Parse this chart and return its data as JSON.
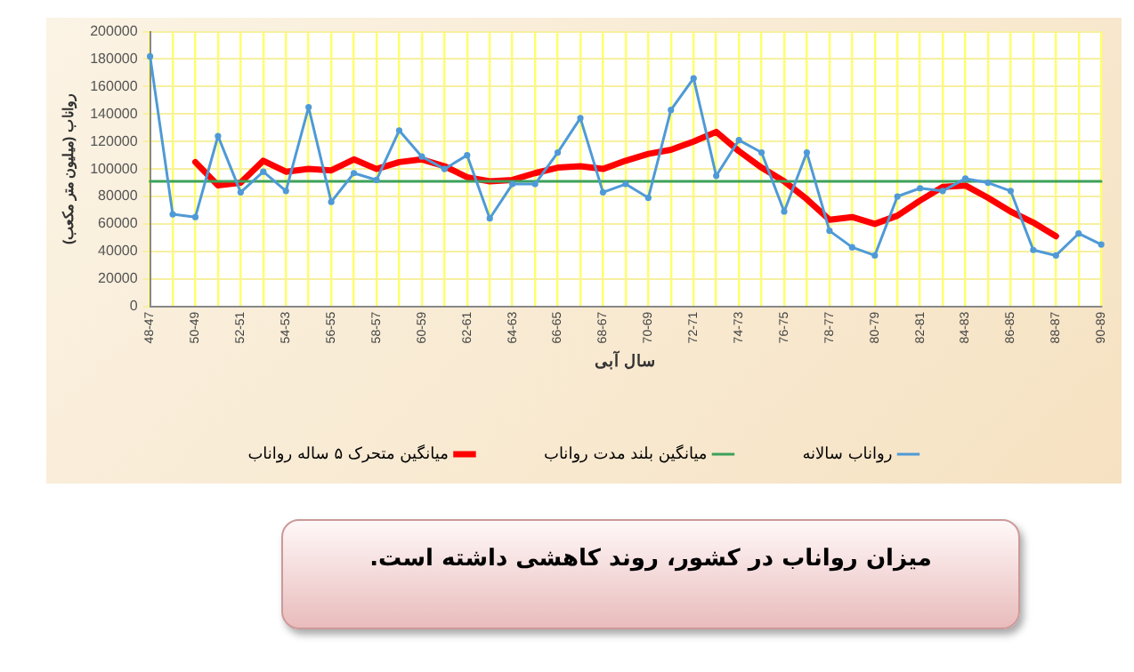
{
  "chart_data": {
    "type": "line",
    "xlabel": "سال آبی",
    "ylabel": "رواناب (میلیون متر مکعب)",
    "categories": [
      "48-47",
      null,
      "50-49",
      null,
      "52-51",
      null,
      "54-53",
      null,
      "56-55",
      null,
      "58-57",
      null,
      "60-59",
      null,
      "62-61",
      null,
      "64-63",
      null,
      "66-65",
      null,
      "68-67",
      null,
      "70-69",
      null,
      "72-71",
      null,
      "74-73",
      null,
      "76-75",
      null,
      "78-77",
      null,
      "80-79",
      null,
      "82-81",
      null,
      "84-83",
      null,
      "86-85",
      null,
      "88-87",
      null,
      "90-89"
    ],
    "series": [
      {
        "name": "رواناب سالانه",
        "color": "#4f9ad6",
        "marker": "circle",
        "values": [
          182000,
          67000,
          65000,
          124000,
          83000,
          98000,
          84000,
          145000,
          76000,
          97000,
          92000,
          128000,
          109000,
          100000,
          110000,
          64000,
          89000,
          89000,
          112000,
          137000,
          83000,
          89000,
          79000,
          143000,
          166000,
          95000,
          121000,
          112000,
          69000,
          112000,
          55000,
          43000,
          37000,
          80000,
          86000,
          84000,
          93000,
          90000,
          84000,
          41000,
          37000,
          53000,
          45000
        ]
      },
      {
        "name": "میانگین بلند مدت رواناب",
        "color": "#3ca15a",
        "marker": "none",
        "values": [
          91000,
          91000,
          91000,
          91000,
          91000,
          91000,
          91000,
          91000,
          91000,
          91000,
          91000,
          91000,
          91000,
          91000,
          91000,
          91000,
          91000,
          91000,
          91000,
          91000,
          91000,
          91000,
          91000,
          91000,
          91000,
          91000,
          91000,
          91000,
          91000,
          91000,
          91000,
          91000,
          91000,
          91000,
          91000,
          91000,
          91000,
          91000,
          91000,
          91000,
          91000,
          91000,
          91000
        ]
      },
      {
        "name": "میانگین متحرک ۵ ساله رواناب",
        "color": "#ff0000",
        "marker": "none",
        "values": [
          null,
          null,
          105000,
          88000,
          90000,
          106000,
          98000,
          100000,
          99000,
          107000,
          100000,
          105000,
          107000,
          102000,
          94000,
          91000,
          92000,
          97000,
          101000,
          102000,
          100000,
          106000,
          111000,
          114000,
          120000,
          127000,
          113000,
          101000,
          91000,
          78000,
          63000,
          65000,
          60000,
          66000,
          77000,
          87000,
          88000,
          79000,
          69000,
          61000,
          51000,
          null,
          null
        ]
      }
    ],
    "ylim": [
      0,
      200000
    ],
    "yticks": [
      0,
      20000,
      40000,
      60000,
      80000,
      100000,
      120000,
      140000,
      160000,
      180000,
      200000
    ],
    "grid": true,
    "legend": "bottom",
    "annotations": [
      "میزان رواناب در کشور، روند کاهشی داشته است."
    ]
  }
}
